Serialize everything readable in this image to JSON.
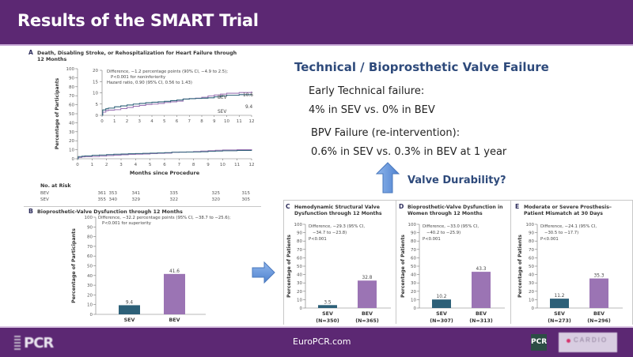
{
  "header": {
    "title": "Results of the SMART Trial"
  },
  "right": {
    "title": "Technical / Bioprosthetic Valve Failure",
    "early_label": "Early Technical failure:",
    "early_value": "4% in SEV vs. 0% in BEV",
    "bpv_label": "BPV Failure (re-intervention):",
    "bpv_value": "0.6% in SEV vs. 0.3% in BEV at 1 year",
    "durability": "Valve Durability?"
  },
  "footer": {
    "url": "EuroPCR.com",
    "logo_left": "PCR",
    "logo_mid": "PCR",
    "logo_right": "CARDIO"
  },
  "colors": {
    "purple_bar": "#5c2873",
    "sev": "#2d6078",
    "bev": "#9b74b4",
    "title_blue": "#2e4a7b",
    "arrow": "#5b8fd6"
  },
  "chart_data": [
    {
      "type": "line",
      "panel": "A",
      "title": "Death, Disabling Stroke, or Rehospitalization for Heart Failure through",
      "title2": "12 Months",
      "xlabel": "Months since Procedure",
      "ylabel": "Percentage of Participants",
      "ylim": [
        0,
        100
      ],
      "xlim": [
        0,
        12
      ],
      "yticks": [
        "0",
        "10",
        "20",
        "30",
        "40",
        "50",
        "60",
        "70",
        "80",
        "90",
        "100"
      ],
      "xticks": [
        "0",
        "1",
        "2",
        "3",
        "4",
        "5",
        "6",
        "7",
        "8",
        "9",
        "10",
        "11",
        "12"
      ],
      "inset": {
        "ylim": [
          0,
          20
        ],
        "yticks": [
          "0",
          "5",
          "10",
          "15",
          "20"
        ],
        "xticks": [
          "0",
          "1",
          "2",
          "3",
          "4",
          "5",
          "6",
          "7",
          "8",
          "9",
          "10",
          "11",
          "12"
        ],
        "annotation": [
          "Difference, −1.2 percentage points (90% CI, −4.9 to 2.5);",
          "P<0.001 for noninferiority",
          "Hazard ratio, 0.90 (95% CI, 0.56 to 1.43)"
        ],
        "end_labels": {
          "BEV": "10.6",
          "SEV": "9.4"
        }
      },
      "series": [
        {
          "name": "BEV",
          "x": [
            0,
            0.05,
            0.3,
            0.5,
            1,
            1.5,
            2,
            2.5,
            3,
            3.5,
            4,
            4.5,
            5,
            5.5,
            6,
            6.5,
            7,
            7.5,
            8,
            8.5,
            9,
            9.5,
            10,
            11,
            12
          ],
          "values": [
            0,
            1.4,
            2.1,
            2.3,
            2.5,
            3.0,
            3.5,
            4.0,
            4.4,
            4.8,
            5.0,
            5.3,
            5.7,
            6.0,
            6.3,
            7.2,
            7.4,
            7.6,
            8.0,
            8.6,
            9.0,
            9.4,
            9.8,
            10.1,
            10.6
          ]
        },
        {
          "name": "SEV",
          "x": [
            0,
            0.05,
            0.3,
            0.5,
            1,
            1.5,
            2,
            2.5,
            3,
            3.5,
            4,
            4.5,
            5,
            5.5,
            6,
            6.5,
            7,
            7.5,
            8,
            8.5,
            9,
            9.5,
            10,
            11,
            12
          ],
          "values": [
            0,
            2.4,
            2.9,
            3.2,
            3.8,
            4.2,
            4.6,
            5.0,
            5.3,
            5.6,
            5.8,
            6.0,
            6.2,
            6.5,
            6.8,
            7.2,
            7.4,
            7.5,
            7.6,
            7.8,
            8.2,
            8.6,
            8.9,
            9.2,
            9.4
          ]
        }
      ],
      "risk_table": {
        "title": "No. at Risk",
        "rows": [
          {
            "label": "BEV",
            "values": [
              "361",
              "353",
              "341",
              "335",
              "325",
              "315"
            ]
          },
          {
            "label": "SEV",
            "values": [
              "355",
              "340",
              "329",
              "322",
              "320",
              "305"
            ]
          }
        ]
      }
    },
    {
      "type": "bar",
      "panel": "B",
      "title": "Bioprosthetic-Valve Dysfunction through 12 Months",
      "ylabel": "Percentage of Participants",
      "ylim": [
        0,
        100
      ],
      "yticks": [
        "0",
        "10",
        "20",
        "30",
        "40",
        "50",
        "60",
        "70",
        "80",
        "90",
        "100"
      ],
      "categories": [
        "SEV",
        "BEV"
      ],
      "values": [
        9.4,
        41.6
      ],
      "labels": [
        "9.4",
        "41.6"
      ],
      "annotation": [
        "Difference, −32.2 percentage points (95% CI, −38.7 to −25.6);",
        "P<0.001 for superiority"
      ]
    },
    {
      "type": "bar",
      "panel": "C",
      "title": "Hemodynamic Structural Valve",
      "title2": "Dysfunction through 12 Months",
      "ylabel": "Percentage of Patients",
      "ylim": [
        0,
        100
      ],
      "yticks": [
        "0",
        "10",
        "20",
        "30",
        "40",
        "50",
        "60",
        "70",
        "80",
        "90",
        "100"
      ],
      "categories": [
        "SEV",
        "BEV"
      ],
      "n_labels": [
        "(N=350)",
        "(N=365)"
      ],
      "values": [
        3.5,
        32.8
      ],
      "labels": [
        "3.5",
        "32.8"
      ],
      "annotation": [
        "Difference, −29.3 (95% CI,",
        "−34.7 to −23.8)",
        "P<0.001"
      ]
    },
    {
      "type": "bar",
      "panel": "D",
      "title": "Bioprosthetic-Valve Dysfunction in",
      "title2": "Women through 12 Months",
      "ylabel": "Percentage of Patients",
      "ylim": [
        0,
        100
      ],
      "yticks": [
        "0",
        "10",
        "20",
        "30",
        "40",
        "50",
        "60",
        "70",
        "80",
        "90",
        "100"
      ],
      "categories": [
        "SEV",
        "BEV"
      ],
      "n_labels": [
        "(N=307)",
        "(N=313)"
      ],
      "values": [
        10.2,
        43.3
      ],
      "labels": [
        "10.2",
        "43.3"
      ],
      "annotation": [
        "Difference, −33.0 (95% CI,",
        "−40.2 to −25.9)",
        "P<0.001"
      ]
    },
    {
      "type": "bar",
      "panel": "E",
      "title": "Moderate or Severe Prosthesis–",
      "title2": "Patient Mismatch at 30 Days",
      "ylabel": "Percentage of Patients",
      "ylim": [
        0,
        100
      ],
      "yticks": [
        "0",
        "10",
        "20",
        "30",
        "40",
        "50",
        "60",
        "70",
        "80",
        "90",
        "100"
      ],
      "categories": [
        "SEV",
        "BEV"
      ],
      "n_labels": [
        "(N=273)",
        "(N=296)"
      ],
      "values": [
        11.2,
        35.3
      ],
      "labels": [
        "11.2",
        "35.3"
      ],
      "annotation": [
        "Difference, −24.1 (95% CI,",
        "−30.5 to −17.7)",
        "P<0.001"
      ]
    }
  ]
}
